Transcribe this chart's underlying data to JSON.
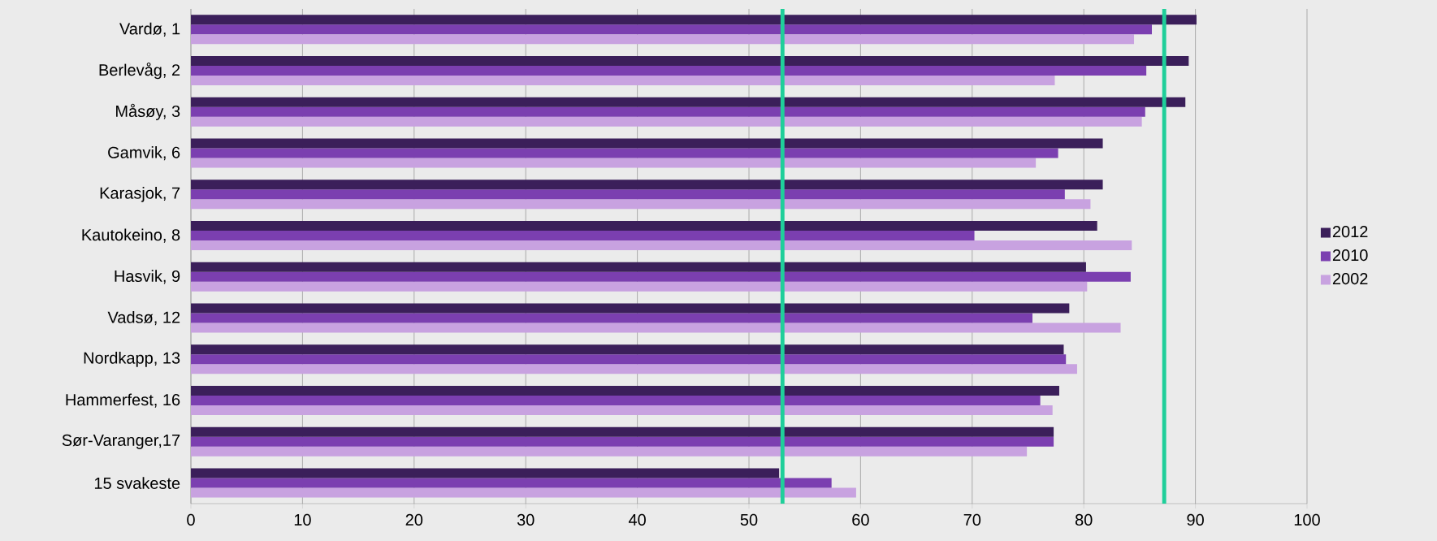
{
  "chart_data": {
    "type": "bar",
    "orientation": "horizontal",
    "categories": [
      "Vardø, 1",
      "Berlevåg, 2",
      "Måsøy, 3",
      "Gamvik, 6",
      "Karasjok, 7",
      "Kautokeino, 8",
      "Hasvik, 9",
      "Vadsø, 12",
      "Nordkapp, 13",
      "Hammerfest, 16",
      "Sør-Varanger,17",
      "15 svakeste"
    ],
    "series": [
      {
        "name": "2012",
        "color": "#3b1f5a",
        "values": [
          90.1,
          89.4,
          89.1,
          81.7,
          81.7,
          81.2,
          80.2,
          78.7,
          78.2,
          77.8,
          77.3,
          52.7
        ]
      },
      {
        "name": "2010",
        "color": "#7b3fb0",
        "values": [
          86.1,
          85.6,
          85.5,
          77.7,
          78.3,
          70.2,
          84.2,
          75.4,
          78.4,
          76.1,
          77.3,
          57.4
        ]
      },
      {
        "name": "2002",
        "color": "#c8a2e0",
        "values": [
          84.5,
          77.4,
          85.2,
          75.7,
          80.6,
          84.3,
          80.3,
          83.3,
          79.4,
          77.2,
          74.9,
          59.6
        ]
      }
    ],
    "xlim": [
      0,
      100
    ],
    "xticks": [
      0,
      10,
      20,
      30,
      40,
      50,
      60,
      70,
      80,
      90,
      100
    ],
    "grid": "x",
    "legend": "right",
    "ref_lines": [
      {
        "axis": "x",
        "value": 53,
        "color": "#1fcf9a"
      },
      {
        "axis": "x",
        "value": 87.2,
        "color": "#1fcf9a"
      }
    ]
  }
}
